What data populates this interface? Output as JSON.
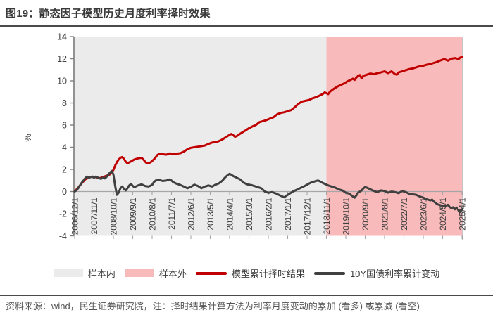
{
  "header": {
    "title": "图19：静态因子模型历史月度利率择时效果"
  },
  "footer": {
    "source_note": "资料来源：wind，民生证券研究院，注：择时结果计算方法为利率月度变动的累加 (看多) 或累减 (看空)"
  },
  "legend": [
    {
      "label": "样本内",
      "swatch": "area",
      "color": "#ebebeb"
    },
    {
      "label": "样本外",
      "swatch": "area",
      "color": "#f8baba"
    },
    {
      "label": "模型累计择时结果",
      "swatch": "line",
      "color": "#c00000"
    },
    {
      "label": "10Y国债利率累计变动",
      "swatch": "line",
      "color": "#404040"
    }
  ],
  "chart_data": {
    "type": "line",
    "title": "静态因子模型历史月度利率择时效果",
    "ylabel": "%",
    "ylim": [
      -4,
      14
    ],
    "y_ticks": [
      14,
      12,
      10,
      8,
      6,
      4,
      2,
      0,
      -2,
      -4
    ],
    "x_unit": "months since 2006/12/1",
    "x_total_months": 220,
    "x_tick_interval_months": 11,
    "x_tick_labels": [
      "2006/12/1",
      "2007/11/1",
      "2008/10/1",
      "2009/9/1",
      "2010/8/1",
      "2011/7/1",
      "2012/6/1",
      "2013/5/1",
      "2014/4/1",
      "2015/3/1",
      "2016/2/1",
      "2017/1/1",
      "2017/12/1",
      "2018/11/1",
      "2019/10/1",
      "2020/9/1",
      "2021/8/1",
      "2022/7/1",
      "2023/6/1",
      "2024/5/1",
      "2025/4/1"
    ],
    "regions": [
      {
        "name": "样本内",
        "color": "#ebebeb",
        "from_month": 0,
        "to_month": 143
      },
      {
        "name": "样本外",
        "color": "#f8baba",
        "from_month": 143,
        "to_month": 220
      }
    ],
    "series": [
      {
        "name": "模型累计择时结果",
        "color": "#c00000",
        "width": 3,
        "points": [
          [
            0,
            0
          ],
          [
            2,
            0.35
          ],
          [
            4,
            0.75
          ],
          [
            6,
            1.1
          ],
          [
            8,
            1.25
          ],
          [
            10,
            1.35
          ],
          [
            12,
            1.3
          ],
          [
            14,
            1.2
          ],
          [
            16,
            1.3
          ],
          [
            18,
            1.42
          ],
          [
            20,
            1.55
          ],
          [
            21,
            1.75
          ],
          [
            22,
            1.95
          ],
          [
            23,
            2.35
          ],
          [
            24,
            2.65
          ],
          [
            25,
            2.9
          ],
          [
            26,
            3.05
          ],
          [
            27,
            3.12
          ],
          [
            28,
            2.95
          ],
          [
            29,
            2.7
          ],
          [
            30,
            2.55
          ],
          [
            32,
            2.72
          ],
          [
            34,
            2.9
          ],
          [
            36,
            3.0
          ],
          [
            38,
            3.05
          ],
          [
            39,
            2.9
          ],
          [
            40,
            2.7
          ],
          [
            41,
            2.55
          ],
          [
            43,
            2.62
          ],
          [
            45,
            2.9
          ],
          [
            46,
            3.1
          ],
          [
            47,
            3.3
          ],
          [
            48,
            3.4
          ],
          [
            50,
            3.37
          ],
          [
            52,
            3.33
          ],
          [
            54,
            3.45
          ],
          [
            56,
            3.4
          ],
          [
            58,
            3.42
          ],
          [
            60,
            3.46
          ],
          [
            62,
            3.6
          ],
          [
            64,
            3.82
          ],
          [
            66,
            3.95
          ],
          [
            68,
            4.0
          ],
          [
            70,
            4.05
          ],
          [
            72,
            4.1
          ],
          [
            74,
            4.16
          ],
          [
            76,
            4.3
          ],
          [
            78,
            4.42
          ],
          [
            80,
            4.46
          ],
          [
            82,
            4.56
          ],
          [
            84,
            4.72
          ],
          [
            86,
            4.92
          ],
          [
            88,
            5.12
          ],
          [
            89,
            5.2
          ],
          [
            90,
            5.1
          ],
          [
            91,
            4.95
          ],
          [
            92,
            5.0
          ],
          [
            93,
            5.12
          ],
          [
            95,
            5.32
          ],
          [
            97,
            5.52
          ],
          [
            99,
            5.72
          ],
          [
            101,
            5.88
          ],
          [
            103,
            6.02
          ],
          [
            105,
            6.27
          ],
          [
            107,
            6.36
          ],
          [
            109,
            6.46
          ],
          [
            111,
            6.6
          ],
          [
            113,
            6.72
          ],
          [
            115,
            6.97
          ],
          [
            117,
            7.1
          ],
          [
            119,
            7.16
          ],
          [
            121,
            7.26
          ],
          [
            123,
            7.36
          ],
          [
            125,
            7.62
          ],
          [
            127,
            7.92
          ],
          [
            129,
            8.12
          ],
          [
            131,
            8.2
          ],
          [
            133,
            8.26
          ],
          [
            135,
            8.42
          ],
          [
            137,
            8.52
          ],
          [
            139,
            8.66
          ],
          [
            141,
            8.82
          ],
          [
            142,
            8.96
          ],
          [
            143,
            8.88
          ],
          [
            144,
            8.8
          ],
          [
            145,
            9.02
          ],
          [
            147,
            9.26
          ],
          [
            149,
            9.46
          ],
          [
            151,
            9.62
          ],
          [
            153,
            9.76
          ],
          [
            155,
            9.96
          ],
          [
            157,
            10.1
          ],
          [
            158,
            10.2
          ],
          [
            159,
            10.08
          ],
          [
            160,
            10.3
          ],
          [
            161,
            10.45
          ],
          [
            162,
            10.52
          ],
          [
            163,
            10.22
          ],
          [
            164,
            10.46
          ],
          [
            166,
            10.56
          ],
          [
            168,
            10.66
          ],
          [
            170,
            10.6
          ],
          [
            172,
            10.7
          ],
          [
            174,
            10.76
          ],
          [
            176,
            10.86
          ],
          [
            178,
            10.7
          ],
          [
            180,
            10.86
          ],
          [
            182,
            10.6
          ],
          [
            183,
            10.56
          ],
          [
            184,
            10.76
          ],
          [
            186,
            10.86
          ],
          [
            188,
            10.96
          ],
          [
            190,
            11.06
          ],
          [
            192,
            11.12
          ],
          [
            194,
            11.22
          ],
          [
            196,
            11.32
          ],
          [
            198,
            11.36
          ],
          [
            200,
            11.46
          ],
          [
            202,
            11.52
          ],
          [
            204,
            11.62
          ],
          [
            206,
            11.72
          ],
          [
            208,
            11.86
          ],
          [
            210,
            11.96
          ],
          [
            212,
            11.82
          ],
          [
            214,
            12.0
          ],
          [
            216,
            12.06
          ],
          [
            218,
            11.96
          ],
          [
            219,
            12.1
          ],
          [
            220,
            12.15
          ]
        ]
      },
      {
        "name": "10Y国债利率累计变动",
        "color": "#404040",
        "width": 3,
        "points": [
          [
            0,
            0
          ],
          [
            1,
            0.1
          ],
          [
            2,
            0.3
          ],
          [
            3,
            0.55
          ],
          [
            4,
            0.8
          ],
          [
            5,
            1.0
          ],
          [
            6,
            1.2
          ],
          [
            7,
            1.35
          ],
          [
            8,
            1.25
          ],
          [
            9,
            1.3
          ],
          [
            10,
            1.35
          ],
          [
            11,
            1.25
          ],
          [
            12,
            1.35
          ],
          [
            13,
            1.28
          ],
          [
            14,
            1.2
          ],
          [
            15,
            1.15
          ],
          [
            16,
            1.25
          ],
          [
            17,
            1.18
          ],
          [
            18,
            1.3
          ],
          [
            19,
            1.5
          ],
          [
            20,
            1.7
          ],
          [
            21,
            1.85
          ],
          [
            22,
            1.55
          ],
          [
            23,
            0.5
          ],
          [
            24,
            -0.3
          ],
          [
            25,
            -0.1
          ],
          [
            26,
            0.3
          ],
          [
            27,
            0.45
          ],
          [
            28,
            0.25
          ],
          [
            29,
            0.1
          ],
          [
            30,
            0.3
          ],
          [
            31,
            0.55
          ],
          [
            32,
            0.7
          ],
          [
            33,
            0.5
          ],
          [
            34,
            0.4
          ],
          [
            36,
            0.55
          ],
          [
            38,
            0.65
          ],
          [
            40,
            0.5
          ],
          [
            42,
            0.45
          ],
          [
            44,
            0.6
          ],
          [
            45,
            0.85
          ],
          [
            46,
            1.0
          ],
          [
            48,
            1.05
          ],
          [
            50,
            0.95
          ],
          [
            52,
            1.0
          ],
          [
            54,
            1.1
          ],
          [
            55,
            1.0
          ],
          [
            56,
            0.85
          ],
          [
            58,
            0.7
          ],
          [
            60,
            0.6
          ],
          [
            62,
            0.45
          ],
          [
            64,
            0.3
          ],
          [
            66,
            0.42
          ],
          [
            68,
            0.62
          ],
          [
            70,
            0.5
          ],
          [
            72,
            0.3
          ],
          [
            74,
            0.45
          ],
          [
            76,
            0.55
          ],
          [
            78,
            0.45
          ],
          [
            80,
            0.62
          ],
          [
            82,
            0.75
          ],
          [
            84,
            1.0
          ],
          [
            85,
            1.2
          ],
          [
            86,
            1.35
          ],
          [
            87,
            1.5
          ],
          [
            88,
            1.6
          ],
          [
            89,
            1.52
          ],
          [
            90,
            1.4
          ],
          [
            92,
            1.25
          ],
          [
            94,
            1.1
          ],
          [
            96,
            0.8
          ],
          [
            98,
            0.65
          ],
          [
            100,
            0.6
          ],
          [
            102,
            0.5
          ],
          [
            104,
            0.4
          ],
          [
            106,
            0.3
          ],
          [
            108,
            0.0
          ],
          [
            110,
            -0.12
          ],
          [
            112,
            -0.05
          ],
          [
            114,
            -0.15
          ],
          [
            116,
            -0.3
          ],
          [
            118,
            -0.45
          ],
          [
            119,
            -0.52
          ],
          [
            120,
            -0.4
          ],
          [
            122,
            -0.2
          ],
          [
            124,
            0.0
          ],
          [
            126,
            0.15
          ],
          [
            128,
            0.3
          ],
          [
            130,
            0.45
          ],
          [
            132,
            0.62
          ],
          [
            134,
            0.8
          ],
          [
            136,
            0.9
          ],
          [
            138,
            1.0
          ],
          [
            139,
            0.95
          ],
          [
            140,
            0.85
          ],
          [
            142,
            0.7
          ],
          [
            144,
            0.55
          ],
          [
            146,
            0.45
          ],
          [
            148,
            0.35
          ],
          [
            150,
            0.2
          ],
          [
            152,
            0.1
          ],
          [
            154,
            -0.1
          ],
          [
            156,
            -0.2
          ],
          [
            158,
            -0.45
          ],
          [
            159,
            -0.55
          ],
          [
            160,
            -0.35
          ],
          [
            161,
            -0.1
          ],
          [
            162,
            0.0
          ],
          [
            163,
            0.1
          ],
          [
            164,
            0.3
          ],
          [
            165,
            0.4
          ],
          [
            166,
            0.35
          ],
          [
            168,
            0.2
          ],
          [
            170,
            0.05
          ],
          [
            172,
            -0.05
          ],
          [
            174,
            0.1
          ],
          [
            176,
            0.05
          ],
          [
            178,
            -0.1
          ],
          [
            180,
            0.0
          ],
          [
            182,
            -0.05
          ],
          [
            184,
            -0.15
          ],
          [
            186,
            0.05
          ],
          [
            188,
            -0.05
          ],
          [
            190,
            -0.2
          ],
          [
            192,
            -0.25
          ],
          [
            194,
            -0.3
          ],
          [
            196,
            -0.45
          ],
          [
            198,
            -0.55
          ],
          [
            200,
            -0.7
          ],
          [
            202,
            -0.8
          ],
          [
            203,
            -0.73
          ],
          [
            204,
            -0.9
          ],
          [
            206,
            -1.15
          ],
          [
            208,
            -1.25
          ],
          [
            210,
            -1.35
          ],
          [
            212,
            -1.2
          ],
          [
            213,
            -1.4
          ],
          [
            214,
            -1.5
          ],
          [
            215,
            -1.42
          ],
          [
            216,
            -1.6
          ],
          [
            217,
            -1.45
          ],
          [
            218,
            -1.7
          ],
          [
            219,
            -1.85
          ],
          [
            220,
            -1.6
          ]
        ]
      }
    ],
    "axis_colors": {
      "y_axis": "#7f7f7f",
      "zero_line": "#a6a6a6",
      "tick_text": "#404040"
    }
  }
}
